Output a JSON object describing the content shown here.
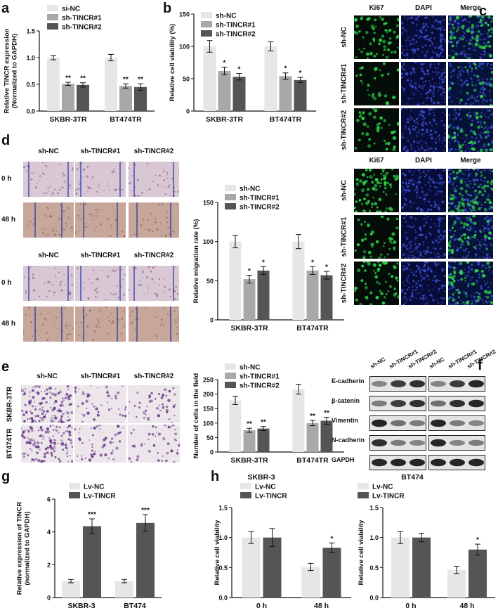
{
  "panels": {
    "a": "a",
    "b": "b",
    "c": "c",
    "d": "d",
    "e": "e",
    "f": "f",
    "g": "g",
    "h": "h"
  },
  "colors": {
    "light": "#e6e6e6",
    "mid": "#a8a8a8",
    "dark": "#555555",
    "green_cells": "#2fd14a",
    "blue_nuclei": "#3b4fd6",
    "crystal_violet": "#6b3a8c",
    "wound_line": "#1c2fa8"
  },
  "chart_data": [
    {
      "id": "a",
      "type": "bar",
      "categories": [
        "SKBR-3TR",
        "BT474TR"
      ],
      "series": [
        {
          "name": "si-NC",
          "values": [
            1.0,
            1.0
          ],
          "errors": [
            0.04,
            0.06
          ]
        },
        {
          "name": "sh-TINCR#1",
          "values": [
            0.51,
            0.47
          ],
          "errors": [
            0.03,
            0.04
          ]
        },
        {
          "name": "sh-TINCR#2",
          "values": [
            0.49,
            0.45
          ],
          "errors": [
            0.04,
            0.06
          ]
        }
      ],
      "sig": [
        [
          "",
          "**",
          "**"
        ],
        [
          "",
          "**",
          "**"
        ]
      ],
      "ylabel": [
        "Relative TINCR expression",
        "(Normalized to GAPDH)"
      ],
      "ylim": [
        0,
        1.5
      ],
      "yticks": [
        "0.0",
        "0.5",
        "1.0",
        "1.5"
      ],
      "yticks_values": [
        0,
        0.5,
        1.0,
        1.5
      ]
    },
    {
      "id": "b",
      "type": "bar",
      "categories": [
        "SKBR-3TR",
        "BT474TR"
      ],
      "series": [
        {
          "name": "sh-NC",
          "values": [
            100,
            100
          ],
          "errors": [
            9,
            7
          ]
        },
        {
          "name": "sh-TINCR#1",
          "values": [
            62,
            54
          ],
          "errors": [
            6,
            5
          ]
        },
        {
          "name": "sh-TINCR#2",
          "values": [
            53,
            48
          ],
          "errors": [
            5,
            4
          ]
        }
      ],
      "sig": [
        [
          "",
          "*",
          "*"
        ],
        [
          "",
          "*",
          "*"
        ]
      ],
      "ylabel": [
        "Relative cell viability (%)"
      ],
      "ylim": [
        0,
        150
      ],
      "yticks": [
        "0",
        "50",
        "100",
        "150"
      ],
      "yticks_values": [
        0,
        50,
        100,
        150
      ]
    },
    {
      "id": "d",
      "type": "bar",
      "categories": [
        "SKBR-3TR",
        "BT474TR"
      ],
      "series": [
        {
          "name": "sh-NC",
          "values": [
            100,
            100
          ],
          "errors": [
            8,
            9
          ]
        },
        {
          "name": "sh-TINCR#1",
          "values": [
            52,
            63
          ],
          "errors": [
            5,
            5
          ]
        },
        {
          "name": "sh-TINCR#2",
          "values": [
            63,
            57
          ],
          "errors": [
            5,
            5
          ]
        }
      ],
      "sig": [
        [
          "",
          "*",
          "*"
        ],
        [
          "",
          "*",
          "*"
        ]
      ],
      "ylabel": [
        "Relative migration rate (%)"
      ],
      "ylim": [
        0,
        150
      ],
      "yticks": [
        "0",
        "50",
        "100",
        "150"
      ],
      "yticks_values": [
        0,
        50,
        100,
        150
      ]
    },
    {
      "id": "e",
      "type": "bar",
      "categories": [
        "SKBR-3TR",
        "BT474TR"
      ],
      "series": [
        {
          "name": "sh-NC",
          "values": [
            178,
            217
          ],
          "errors": [
            14,
            17
          ]
        },
        {
          "name": "sh-TINCR#1",
          "values": [
            75,
            100
          ],
          "errors": [
            7,
            9
          ]
        },
        {
          "name": "sh-TINCR#2",
          "values": [
            81,
            108
          ],
          "errors": [
            7,
            12
          ]
        }
      ],
      "sig": [
        [
          "",
          "**",
          "**"
        ],
        [
          "",
          "**",
          "**"
        ]
      ],
      "ylabel": [
        "Number of cells in the field"
      ],
      "ylim": [
        0,
        250
      ],
      "yticks": [
        "0",
        "50",
        "100",
        "150",
        "200",
        "250"
      ],
      "yticks_values": [
        0,
        50,
        100,
        150,
        200,
        250
      ]
    },
    {
      "id": "g",
      "type": "bar",
      "categories": [
        "SKBR-3",
        "BT474"
      ],
      "series": [
        {
          "name": "Lv-NC",
          "values": [
            1.0,
            1.0
          ],
          "errors": [
            0.1,
            0.1
          ]
        },
        {
          "name": "Lv-TINCR",
          "values": [
            4.35,
            4.55
          ],
          "errors": [
            0.45,
            0.5
          ]
        }
      ],
      "sig": [
        [
          "",
          "***"
        ],
        [
          "",
          "***"
        ]
      ],
      "ylabel": [
        "Relative expression of TINCR",
        "(normalized to GAPDH)"
      ],
      "ylim": [
        0,
        6
      ],
      "yticks": [
        "0",
        "2",
        "4",
        "6"
      ],
      "yticks_values": [
        0,
        2,
        4,
        6
      ]
    },
    {
      "id": "h1",
      "type": "bar",
      "title": "SKBR-3",
      "categories": [
        "0 h",
        "48 h"
      ],
      "series": [
        {
          "name": "Lv-NC",
          "values": [
            1.0,
            0.51
          ],
          "errors": [
            0.1,
            0.06
          ]
        },
        {
          "name": "Lv-TINCR",
          "values": [
            1.0,
            0.83
          ],
          "errors": [
            0.15,
            0.08
          ]
        }
      ],
      "sig": [
        [
          "",
          ""
        ],
        [
          "",
          "*"
        ]
      ],
      "ylabel": [
        "Relative cell viability"
      ],
      "ylim": [
        0,
        1.5
      ],
      "yticks": [
        "0.0",
        "0.5",
        "1.0",
        "1.5"
      ],
      "yticks_values": [
        0,
        0.5,
        1.0,
        1.5
      ]
    },
    {
      "id": "h2",
      "type": "bar",
      "title": "BT474",
      "categories": [
        "0 h",
        "48 h"
      ],
      "series": [
        {
          "name": "Lv-NC",
          "values": [
            1.0,
            0.46
          ],
          "errors": [
            0.1,
            0.06
          ]
        },
        {
          "name": "Lv-TINCR",
          "values": [
            1.0,
            0.8
          ],
          "errors": [
            0.07,
            0.09
          ]
        }
      ],
      "sig": [
        [
          "",
          ""
        ],
        [
          "",
          "*"
        ]
      ],
      "ylabel": [
        "Relative cell viability"
      ],
      "ylim": [
        0,
        1.5
      ],
      "yticks": [
        "0.0",
        "0.5",
        "1.0",
        "1.5"
      ],
      "yticks_values": [
        0,
        0.5,
        1.0,
        1.5
      ]
    }
  ],
  "panel_c": {
    "columns": [
      "Ki67",
      "DAPI",
      "Merge"
    ],
    "rows": [
      "sh-NC",
      "sh-TINCR#1",
      "sh-TINCR#2"
    ]
  },
  "panel_d": {
    "columns": [
      "sh-NC",
      "sh-TINCR#1",
      "sh-TINCR#2"
    ],
    "rows": [
      "0 h",
      "48 h"
    ]
  },
  "panel_e": {
    "columns": [
      "sh-NC",
      "sh-TINCR#1",
      "sh-TINCR#2"
    ],
    "rows": [
      "SKBR-3TR",
      "BT474TR"
    ]
  },
  "panel_f": {
    "lanes": [
      "sh-NC",
      "sh-TINCR#1",
      "sh-TINCR#2",
      "sh-NC",
      "sh-TINCR#1",
      "sh-TINCR#2"
    ],
    "proteins": [
      "E-cadherin",
      "β-catenin",
      "Vimentin",
      "N-cadherin",
      "GAPDH"
    ],
    "band_intensity": [
      [
        0.45,
        0.8,
        0.85,
        0.45,
        0.8,
        0.9
      ],
      [
        0.5,
        0.8,
        0.85,
        0.55,
        0.85,
        0.9
      ],
      [
        0.9,
        0.55,
        0.5,
        0.9,
        0.5,
        0.45
      ],
      [
        0.85,
        0.5,
        0.45,
        0.9,
        0.45,
        0.5
      ],
      [
        0.9,
        0.9,
        0.9,
        0.9,
        0.9,
        0.9
      ]
    ]
  }
}
